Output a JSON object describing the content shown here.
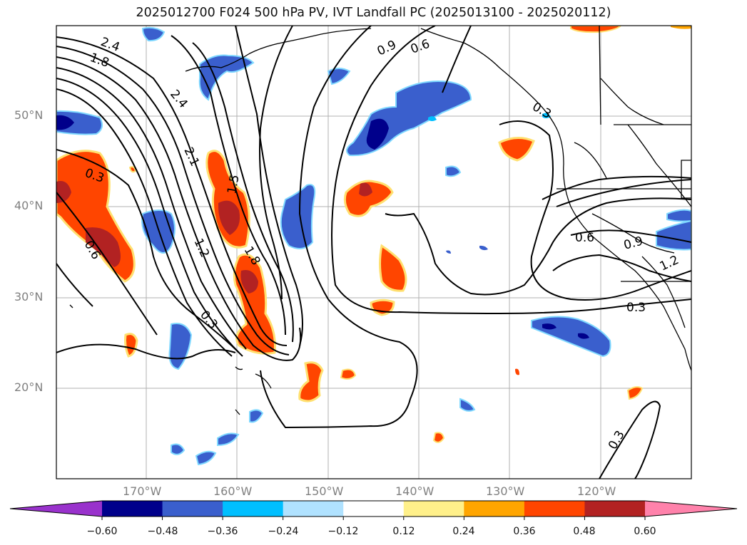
{
  "title": "2025012700 F024 500 hPa PV, IVT Landfall PC (2025013100 - 2025020112)",
  "axes": {
    "lat_labels": [
      "50°N",
      "40°N",
      "30°N",
      "20°N"
    ],
    "lon_labels": [
      "170°W",
      "160°W",
      "150°W",
      "140°W",
      "130°W",
      "120°W"
    ]
  },
  "contour_labels": [
    "2.4",
    "1.8",
    "2.4",
    "2.1",
    "0.3",
    "1.5",
    "0.6",
    "1.2",
    "1.8",
    "0.3",
    "0.9",
    "0.6",
    "0.3",
    "0.6",
    "0.9",
    "1.2",
    "0.3",
    "0.3"
  ],
  "colorbar": {
    "ticks": [
      "−0.60",
      "−0.48",
      "−0.36",
      "−0.24",
      "−0.12",
      "0.12",
      "0.24",
      "0.36",
      "0.48",
      "0.60"
    ],
    "colors": [
      "#9932cc",
      "#00008b",
      "#3a5fcd",
      "#00bfff",
      "#b0e2ff",
      "#ffffff",
      "#fff08a",
      "#ffa500",
      "#ff4500",
      "#b22222",
      "#ff82ab"
    ]
  }
}
